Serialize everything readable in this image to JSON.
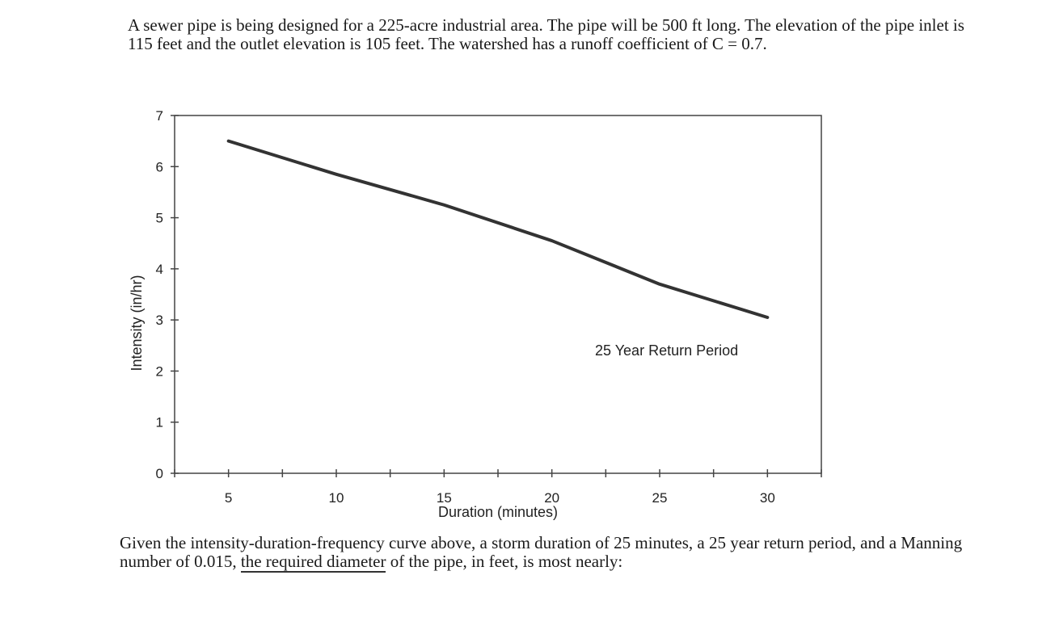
{
  "problem": {
    "intro": "A sewer pipe is being designed for a 225-acre industrial area.  The pipe will be 500 ft long. The elevation of the pipe inlet is 115 feet and the outlet elevation is 105 feet. The watershed has a runoff coefficient of C = 0.7.",
    "question_before": "Given the intensity-duration-frequency curve above, a storm duration of 25 minutes, a 25 year return period, and a Manning number of 0.015, ",
    "question_underlined": "the required diameter",
    "question_after": " of the pipe, in feet, is most nearly:"
  },
  "chart_data": {
    "type": "line",
    "title": "",
    "xlabel": "Duration (minutes)",
    "ylabel": "Intensity (in/hr)",
    "xlim": [
      2.5,
      32.5
    ],
    "ylim": [
      0,
      7
    ],
    "xticks": [
      5,
      10,
      15,
      20,
      25,
      30
    ],
    "yticks": [
      0,
      1,
      2,
      3,
      4,
      5,
      6,
      7
    ],
    "grid": false,
    "annotation": "25 Year Return Period",
    "series": [
      {
        "x": [
          5,
          10,
          15,
          20,
          25,
          30
        ],
        "values": [
          6.5,
          5.85,
          5.25,
          4.55,
          3.7,
          3.05
        ]
      }
    ],
    "line_color": "#333333"
  }
}
